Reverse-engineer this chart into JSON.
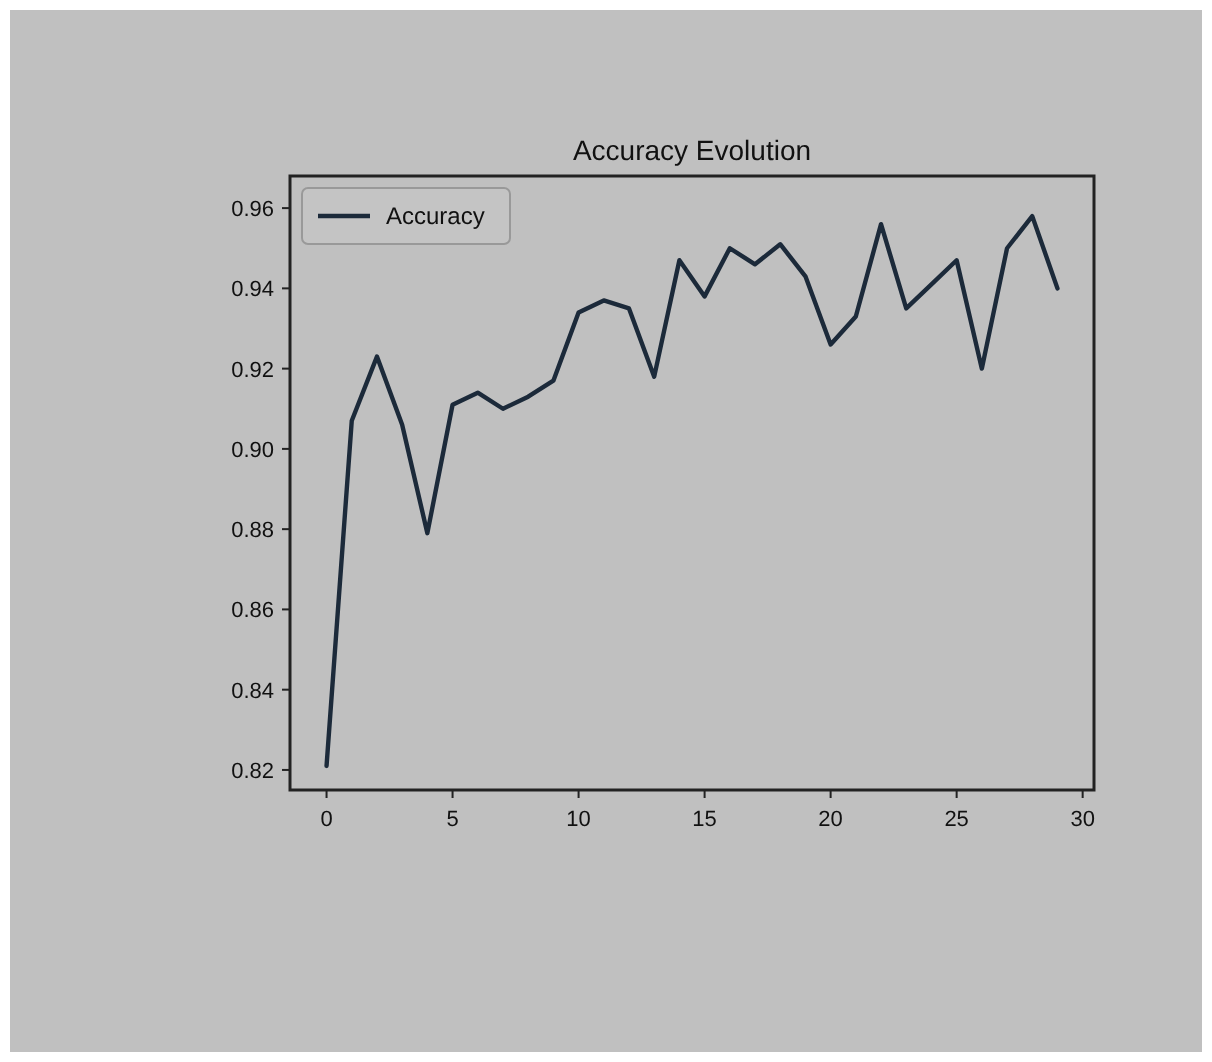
{
  "chart_data": {
    "type": "line",
    "title": "Accuracy Evolution",
    "x": [
      0,
      1,
      2,
      3,
      4,
      5,
      6,
      7,
      8,
      9,
      10,
      11,
      12,
      13,
      14,
      15,
      16,
      17,
      18,
      19,
      20,
      21,
      22,
      23,
      24,
      25,
      26,
      27,
      28,
      29
    ],
    "series": [
      {
        "name": "Accuracy",
        "color": "#1c2a3a",
        "values": [
          0.821,
          0.907,
          0.923,
          0.906,
          0.879,
          0.911,
          0.914,
          0.91,
          0.913,
          0.917,
          0.934,
          0.937,
          0.935,
          0.918,
          0.947,
          0.938,
          0.95,
          0.946,
          0.951,
          0.943,
          0.926,
          0.933,
          0.956,
          0.935,
          0.941,
          0.947,
          0.92,
          0.95,
          0.958,
          0.94
        ]
      }
    ],
    "xlim": [
      -1.45,
      30.45
    ],
    "xticks": [
      0,
      5,
      10,
      15,
      20,
      25,
      30
    ],
    "ylim": [
      0.815,
      0.968
    ],
    "yticks": [
      {
        "value": 0.82,
        "label": "0.82"
      },
      {
        "value": 0.84,
        "label": "0.84"
      },
      {
        "value": 0.86,
        "label": "0.86"
      },
      {
        "value": 0.88,
        "label": "0.88"
      },
      {
        "value": 0.9,
        "label": "0.90"
      },
      {
        "value": 0.92,
        "label": "0.92"
      },
      {
        "value": 0.94,
        "label": "0.94"
      },
      {
        "value": 0.96,
        "label": "0.96"
      }
    ],
    "legend": "top left",
    "line_style": "solid"
  }
}
